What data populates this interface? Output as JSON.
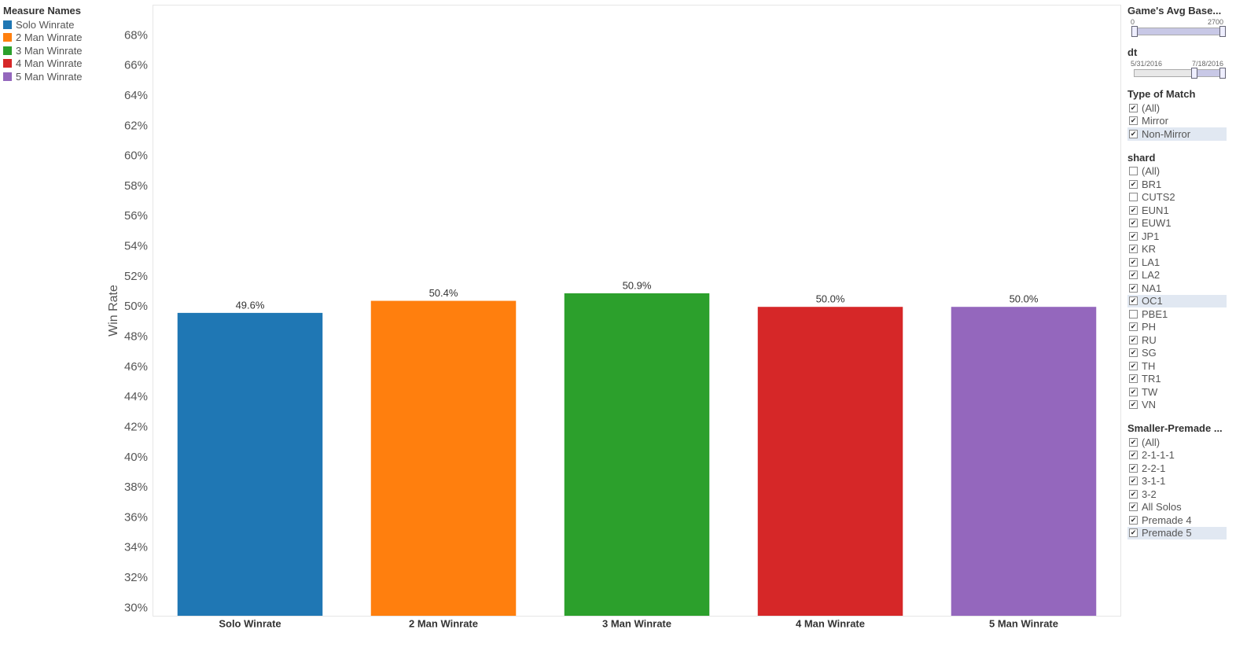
{
  "chart_data": {
    "type": "bar",
    "y_label": "Win Rate",
    "legend_title": "Measure Names",
    "categories": [
      "Solo Winrate",
      "2 Man Winrate",
      "3 Man Winrate",
      "4 Man Winrate",
      "5 Man Winrate"
    ],
    "values": [
      49.6,
      50.4,
      50.9,
      50.0,
      50.0
    ],
    "value_labels": [
      "49.6%",
      "50.4%",
      "50.9%",
      "50.0%",
      "50.0%"
    ],
    "colors": [
      "#1f77b4",
      "#ff7f0e",
      "#2ca02c",
      "#d62728",
      "#9467bd"
    ],
    "ylim": [
      29.5,
      70
    ],
    "yticks": [
      {
        "value": 30,
        "label": "30%"
      },
      {
        "value": 32,
        "label": "32%"
      },
      {
        "value": 34,
        "label": "34%"
      },
      {
        "value": 36,
        "label": "36%"
      },
      {
        "value": 38,
        "label": "38%"
      },
      {
        "value": 40,
        "label": "40%"
      },
      {
        "value": 42,
        "label": "42%"
      },
      {
        "value": 44,
        "label": "44%"
      },
      {
        "value": 46,
        "label": "46%"
      },
      {
        "value": 48,
        "label": "48%"
      },
      {
        "value": 50,
        "label": "50%"
      },
      {
        "value": 52,
        "label": "52%"
      },
      {
        "value": 54,
        "label": "54%"
      },
      {
        "value": 56,
        "label": "56%"
      },
      {
        "value": 58,
        "label": "58%"
      },
      {
        "value": 60,
        "label": "60%"
      },
      {
        "value": 62,
        "label": "62%"
      },
      {
        "value": 64,
        "label": "64%"
      },
      {
        "value": 66,
        "label": "66%"
      },
      {
        "value": 68,
        "label": "68%"
      }
    ],
    "grid": false
  },
  "filters": [
    {
      "kind": "slider",
      "title": "Game's Avg Base...",
      "min_label": "0",
      "max_label": "2700"
    },
    {
      "kind": "slider",
      "title": "dt",
      "min_label": "5/31/2016",
      "max_label": "7/18/2016"
    },
    {
      "kind": "checklist",
      "title": "Type of Match",
      "items": [
        {
          "label": "(All)",
          "checked": true
        },
        {
          "label": "Mirror",
          "checked": true
        },
        {
          "label": "Non-Mirror",
          "checked": true,
          "highlighted": true
        }
      ]
    },
    {
      "kind": "checklist",
      "title": "shard",
      "items": [
        {
          "label": "(All)",
          "checked": false
        },
        {
          "label": "BR1",
          "checked": true
        },
        {
          "label": "CUTS2",
          "checked": false
        },
        {
          "label": "EUN1",
          "checked": true
        },
        {
          "label": "EUW1",
          "checked": true
        },
        {
          "label": "JP1",
          "checked": true
        },
        {
          "label": "KR",
          "checked": true
        },
        {
          "label": "LA1",
          "checked": true
        },
        {
          "label": "LA2",
          "checked": true
        },
        {
          "label": "NA1",
          "checked": true
        },
        {
          "label": "OC1",
          "checked": true,
          "highlighted": true
        },
        {
          "label": "PBE1",
          "checked": false
        },
        {
          "label": "PH",
          "checked": true
        },
        {
          "label": "RU",
          "checked": true
        },
        {
          "label": "SG",
          "checked": true
        },
        {
          "label": "TH",
          "checked": true
        },
        {
          "label": "TR1",
          "checked": true
        },
        {
          "label": "TW",
          "checked": true
        },
        {
          "label": "VN",
          "checked": true
        }
      ]
    },
    {
      "kind": "checklist",
      "title": "Smaller-Premade ...",
      "items": [
        {
          "label": "(All)",
          "checked": true
        },
        {
          "label": "2-1-1-1",
          "checked": true
        },
        {
          "label": "2-2-1",
          "checked": true
        },
        {
          "label": "3-1-1",
          "checked": true
        },
        {
          "label": "3-2",
          "checked": true
        },
        {
          "label": "All Solos",
          "checked": true
        },
        {
          "label": "Premade 4",
          "checked": true
        },
        {
          "label": "Premade 5",
          "checked": true,
          "highlighted": true
        }
      ]
    }
  ]
}
